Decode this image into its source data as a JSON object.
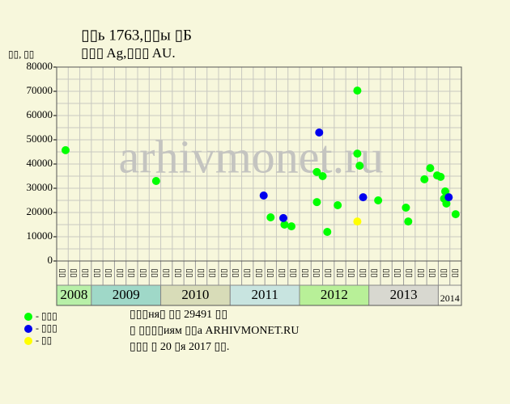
{
  "chart_data": {
    "type": "scatter",
    "title": "▯▯ь 1763,▯▯ы ▯Б",
    "subtitle": "▯▯▯ Ag,▯▯▯ AU.",
    "y_label": "▯▯, ▯▯",
    "watermark": "arhivmonet.ru",
    "ylim": [
      0,
      80000
    ],
    "yticks": [
      0,
      10000,
      20000,
      30000,
      40000,
      50000,
      60000,
      70000,
      80000
    ],
    "ygrid": [
      0,
      5000,
      10000,
      15000,
      20000,
      25000,
      30000,
      35000,
      40000,
      45000,
      50000,
      55000,
      60000,
      65000,
      70000,
      75000,
      80000
    ],
    "xlim": [
      0,
      35
    ],
    "grid": true,
    "years": [
      {
        "label": "2008",
        "color": "#b8f0a8",
        "months": [
          "▯▯",
          "▯▯",
          "▯▯"
        ]
      },
      {
        "label": "2009",
        "color": "#9fd8c8",
        "months": [
          "▯▯",
          "▯▯",
          "▯▯",
          "▯▯",
          "▯▯",
          "▯▯"
        ]
      },
      {
        "label": "2010",
        "color": "#d8dcb8",
        "months": [
          "▯▯",
          "▯▯",
          "▯▯",
          "▯▯",
          "▯▯",
          "▯▯"
        ]
      },
      {
        "label": "2011",
        "color": "#c8e4e0",
        "months": [
          "▯▯",
          "▯▯",
          "▯▯",
          "▯▯",
          "▯▯",
          "▯▯"
        ]
      },
      {
        "label": "2012",
        "color": "#b8f098",
        "months": [
          "▯▯",
          "▯▯",
          "▯▯",
          "▯▯",
          "▯▯",
          "▯▯"
        ]
      },
      {
        "label": "2013",
        "color": "#d8d8d0",
        "months": [
          "▯▯",
          "▯▯",
          "▯▯",
          "▯▯",
          "▯▯",
          "▯▯"
        ]
      },
      {
        "label": "2014",
        "color": "#f4f4e0",
        "months": [
          "▯▯",
          "▯▯"
        ]
      }
    ],
    "series": [
      {
        "name": "- ▯▯▯",
        "color": "#00ff00",
        "x": [
          0.77,
          8.6,
          18.5,
          19.7,
          20.3,
          22.5,
          23.0,
          22.5,
          23.4,
          24.3,
          26.0,
          26.0,
          26.2,
          27.8,
          30.2,
          30.4,
          31.8,
          32.3,
          32.9,
          33.2,
          33.6,
          33.5,
          33.7,
          34.5
        ],
        "values": [
          45700,
          33000,
          18000,
          15000,
          14300,
          36700,
          35000,
          24300,
          12000,
          23000,
          70300,
          44300,
          39300,
          25000,
          22000,
          16300,
          33700,
          38300,
          35300,
          34700,
          28700,
          25700,
          23700,
          19300
        ]
      },
      {
        "name": "- ▯▯▯",
        "color": "#0000ee",
        "x": [
          17.9,
          22.7,
          19.6,
          26.5,
          33.9
        ],
        "values": [
          27000,
          53000,
          17700,
          26300,
          26300
        ]
      },
      {
        "name": "- ▯▯",
        "color": "#ffff00",
        "x": [
          26.0
        ],
        "values": [
          16300
        ]
      }
    ],
    "notes": [
      "▯▯▯ня▯ ▯▯ 29491 ▯▯",
      "▯ ▯▯▯▯иям ▯▯а ARHIVMONET.RU",
      "▯▯▯ ▯ 20 ▯я 2017 ▯▯."
    ]
  }
}
